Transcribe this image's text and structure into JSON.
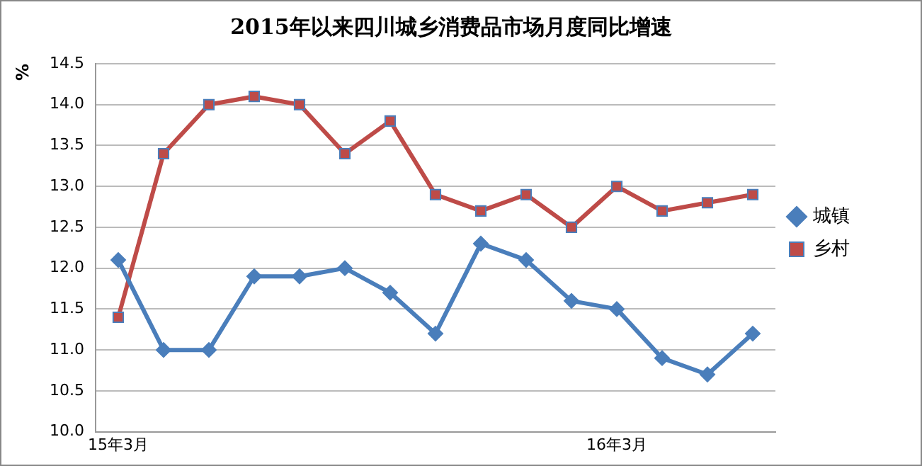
{
  "chart_data": {
    "type": "line",
    "title": "2015年以来四川城乡消费品市场月度同比增速",
    "ylabel": "%",
    "categories": [
      "15年3月",
      null,
      null,
      null,
      null,
      null,
      null,
      null,
      null,
      null,
      null,
      "16年3月",
      null,
      null,
      null
    ],
    "series": [
      {
        "name": "城镇",
        "color": "#4a7ebb",
        "marker": "diamond",
        "values": [
          12.1,
          11.0,
          11.0,
          11.9,
          11.9,
          12.0,
          11.7,
          11.2,
          12.3,
          12.1,
          11.6,
          11.5,
          10.9,
          10.7,
          11.2
        ]
      },
      {
        "name": "乡村",
        "color": "#be4b48",
        "marker": "square",
        "values": [
          11.4,
          13.4,
          14.0,
          14.1,
          14.0,
          13.4,
          13.8,
          12.9,
          12.7,
          12.9,
          12.5,
          13.0,
          12.7,
          12.8,
          12.9
        ]
      }
    ],
    "ylim": [
      10,
      14.5
    ],
    "yticks": [
      {
        "value": 10,
        "label": "10.0"
      },
      {
        "value": 10.5,
        "label": "10.5"
      },
      {
        "value": 11,
        "label": "11.0"
      },
      {
        "value": 11.5,
        "label": "11.5"
      },
      {
        "value": 12,
        "label": "12.0"
      },
      {
        "value": 12.5,
        "label": "12.5"
      },
      {
        "value": 13,
        "label": "13.0"
      },
      {
        "value": 13.5,
        "label": "13.5"
      },
      {
        "value": 14,
        "label": "14.0"
      },
      {
        "value": 14.5,
        "label": "14.5"
      }
    ],
    "grid": "y",
    "legend": "right",
    "line_style": "solid"
  }
}
